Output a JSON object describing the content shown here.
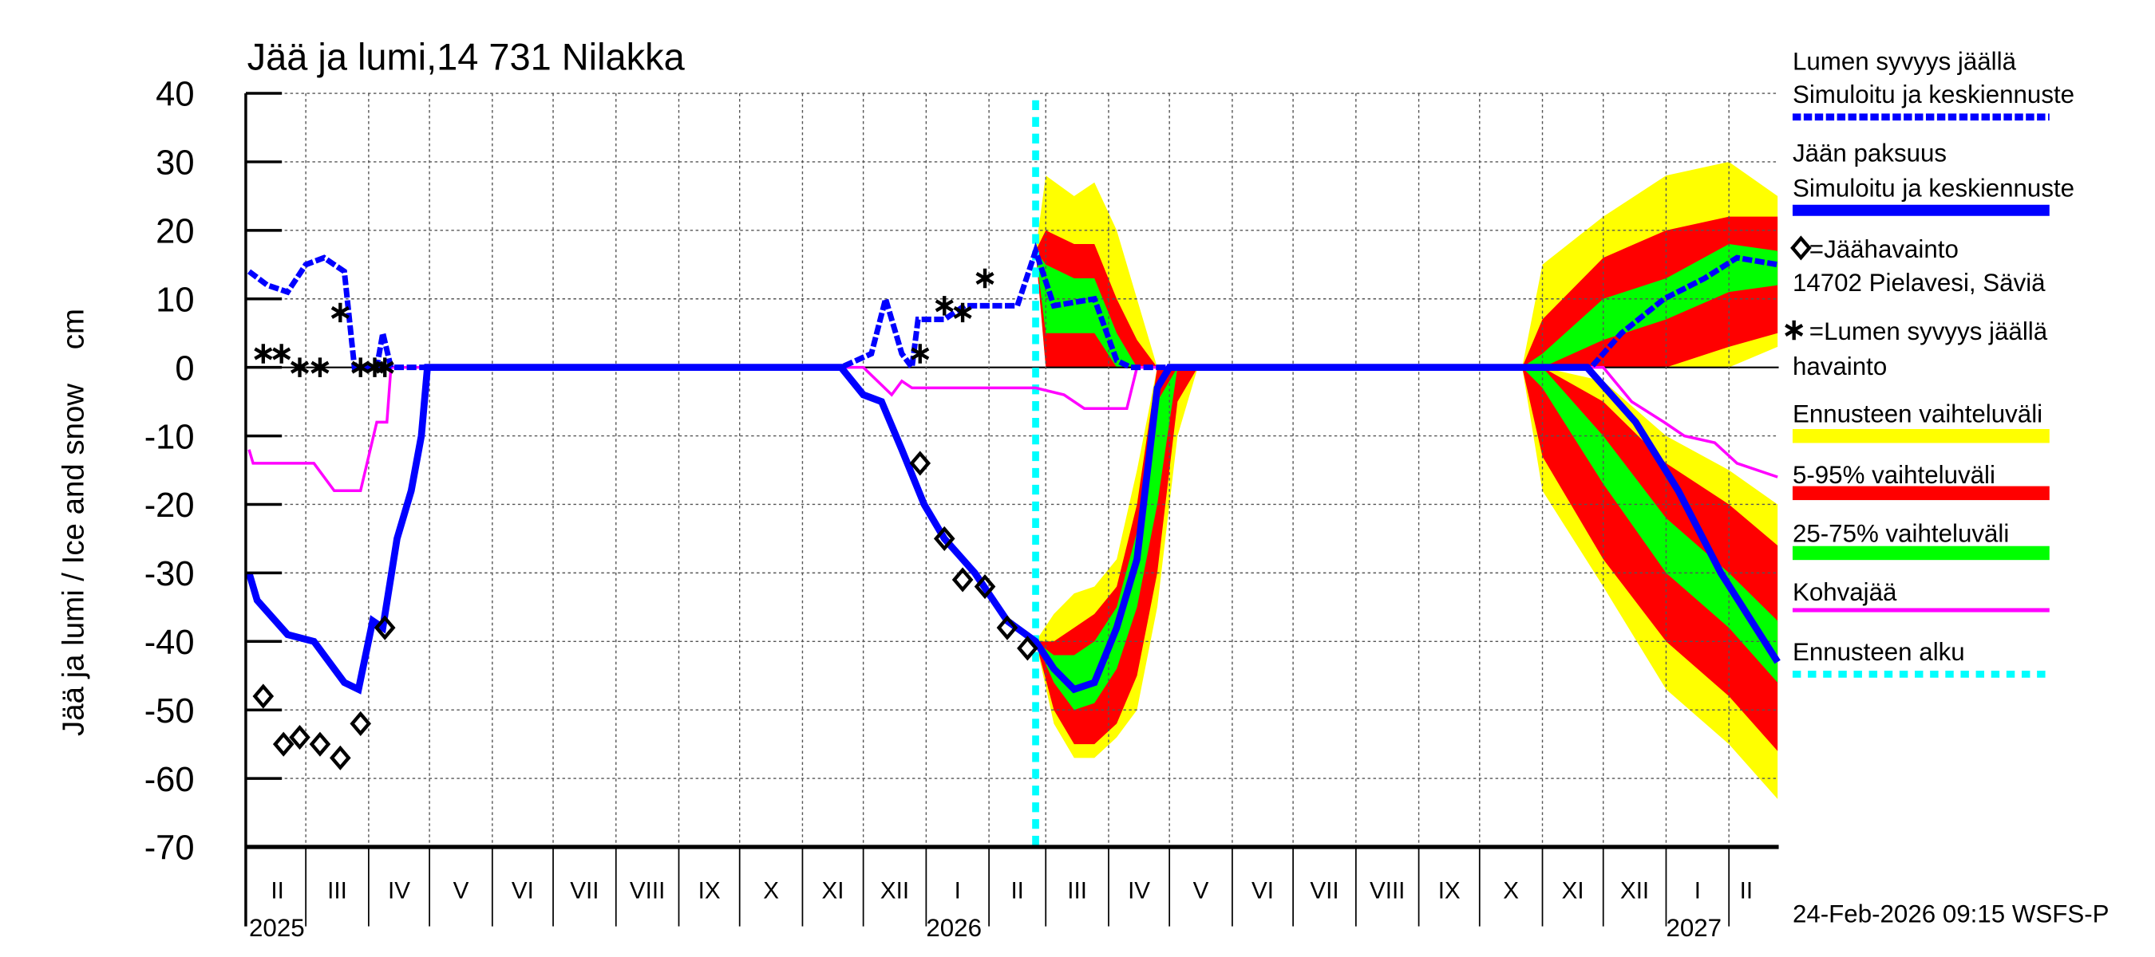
{
  "chart_data": {
    "type": "line",
    "title": "Jää ja lumi,14 731 Nilakka",
    "ylabel": "Jää ja lumi / Ice and snow    cm",
    "ylim": [
      -70,
      40
    ],
    "yticks": [
      40,
      30,
      20,
      10,
      0,
      -10,
      -20,
      -30,
      -40,
      -50,
      -60,
      -70
    ],
    "xlim": [
      "2025-02-01",
      "2027-02-25"
    ],
    "grid": true,
    "legend_position": "right",
    "month_labels": [
      "II",
      "III",
      "IV",
      "V",
      "VI",
      "VII",
      "VIII",
      "IX",
      "X",
      "XI",
      "XII",
      "I",
      "II",
      "III",
      "IV",
      "V",
      "VI",
      "VII",
      "VIII",
      "IX",
      "X",
      "XI",
      "XII",
      "I",
      "II"
    ],
    "year_labels": [
      {
        "label": "2025",
        "date": "2025-02-01"
      },
      {
        "label": "2026",
        "date": "2026-01-01"
      },
      {
        "label": "2027",
        "date": "2027-01-01"
      }
    ],
    "forecast_start": "2026-02-24",
    "colors": {
      "snow": "#0000ff",
      "ice": "#0000ff",
      "kohva": "#ff00ff",
      "range": "#ffff00",
      "p5_95": "#ff0000",
      "p25_75": "#00ff00",
      "forecast_start": "#00ffff"
    },
    "series": {
      "snow_simulated": [
        [
          "2025-02-01",
          14
        ],
        [
          "2025-02-10",
          12
        ],
        [
          "2025-02-20",
          11
        ],
        [
          "2025-03-01",
          15
        ],
        [
          "2025-03-10",
          16
        ],
        [
          "2025-03-20",
          14
        ],
        [
          "2025-03-25",
          0
        ],
        [
          "2025-04-05",
          0
        ],
        [
          "2025-04-08",
          5
        ],
        [
          "2025-04-12",
          0
        ],
        [
          "2025-11-20",
          0
        ],
        [
          "2025-12-05",
          2
        ],
        [
          "2025-12-12",
          10
        ],
        [
          "2025-12-20",
          2
        ],
        [
          "2025-12-25",
          0
        ],
        [
          "2025-12-28",
          7
        ],
        [
          "2026-01-10",
          7
        ],
        [
          "2026-01-20",
          9
        ],
        [
          "2026-02-15",
          9
        ],
        [
          "2026-02-24",
          17
        ],
        [
          "2026-03-05",
          9
        ],
        [
          "2026-03-25",
          10
        ],
        [
          "2026-04-05",
          1
        ],
        [
          "2026-04-12",
          0
        ],
        [
          "2026-11-25",
          0
        ],
        [
          "2026-12-10",
          5
        ],
        [
          "2026-12-31",
          10
        ],
        [
          "2027-01-20",
          13
        ],
        [
          "2027-02-05",
          16
        ],
        [
          "2027-02-25",
          15
        ]
      ],
      "ice_simulated": [
        [
          "2025-02-01",
          -30
        ],
        [
          "2025-02-05",
          -34
        ],
        [
          "2025-02-20",
          -39
        ],
        [
          "2025-03-05",
          -40
        ],
        [
          "2025-03-20",
          -46
        ],
        [
          "2025-03-27",
          -47
        ],
        [
          "2025-04-03",
          -37
        ],
        [
          "2025-04-08",
          -38
        ],
        [
          "2025-04-15",
          -25
        ],
        [
          "2025-04-22",
          -18
        ],
        [
          "2025-04-27",
          -10
        ],
        [
          "2025-04-30",
          0
        ],
        [
          "2025-11-20",
          0
        ],
        [
          "2025-12-01",
          -4
        ],
        [
          "2025-12-10",
          -5
        ],
        [
          "2025-12-20",
          -12
        ],
        [
          "2025-12-31",
          -20
        ],
        [
          "2026-01-10",
          -25
        ],
        [
          "2026-01-25",
          -30
        ],
        [
          "2026-02-10",
          -37
        ],
        [
          "2026-02-24",
          -40
        ],
        [
          "2026-03-05",
          -44
        ],
        [
          "2026-03-15",
          -47
        ],
        [
          "2026-03-25",
          -46
        ],
        [
          "2026-04-05",
          -38
        ],
        [
          "2026-04-15",
          -28
        ],
        [
          "2026-04-25",
          -3
        ],
        [
          "2026-05-01",
          0
        ],
        [
          "2026-11-23",
          0
        ],
        [
          "2026-12-17",
          -8
        ],
        [
          "2027-01-07",
          -18
        ],
        [
          "2027-01-28",
          -30
        ],
        [
          "2027-02-25",
          -43
        ]
      ],
      "kohvajaa": [
        [
          "2025-02-01",
          -12
        ],
        [
          "2025-02-03",
          -14
        ],
        [
          "2025-03-05",
          -14
        ],
        [
          "2025-03-15",
          -18
        ],
        [
          "2025-03-28",
          -18
        ],
        [
          "2025-04-05",
          -8
        ],
        [
          "2025-04-10",
          -8
        ],
        [
          "2025-04-12",
          0
        ],
        [
          "2025-12-01",
          0
        ],
        [
          "2025-12-15",
          -4
        ],
        [
          "2025-12-20",
          -2
        ],
        [
          "2025-12-25",
          -3
        ],
        [
          "2026-02-24",
          -3
        ],
        [
          "2026-03-10",
          -4
        ],
        [
          "2026-03-20",
          -6
        ],
        [
          "2026-04-10",
          -6
        ],
        [
          "2026-04-15",
          0
        ],
        [
          "2026-12-01",
          0
        ],
        [
          "2026-12-15",
          -5
        ],
        [
          "2026-12-31",
          -8
        ],
        [
          "2027-01-10",
          -10
        ],
        [
          "2027-01-25",
          -11
        ],
        [
          "2027-02-05",
          -14
        ],
        [
          "2027-02-25",
          -16
        ]
      ],
      "ice_observed": [
        [
          "2025-02-08",
          -48
        ],
        [
          "2025-02-18",
          -55
        ],
        [
          "2025-02-26",
          -54
        ],
        [
          "2025-03-08",
          -55
        ],
        [
          "2025-03-18",
          -57
        ],
        [
          "2025-03-28",
          -52
        ],
        [
          "2025-04-09",
          -38
        ],
        [
          "2025-12-29",
          -14
        ],
        [
          "2026-01-10",
          -25
        ],
        [
          "2026-01-19",
          -31
        ],
        [
          "2026-01-30",
          -32
        ],
        [
          "2026-02-10",
          -38
        ],
        [
          "2026-02-20",
          -41
        ]
      ],
      "snow_observed": [
        [
          "2025-02-08",
          2
        ],
        [
          "2025-02-17",
          2
        ],
        [
          "2025-02-26",
          0
        ],
        [
          "2025-03-08",
          0
        ],
        [
          "2025-03-18",
          8
        ],
        [
          "2025-03-28",
          0
        ],
        [
          "2025-04-04",
          0
        ],
        [
          "2025-04-09",
          0
        ],
        [
          "2025-12-29",
          2
        ],
        [
          "2026-01-10",
          9
        ],
        [
          "2026-01-19",
          8
        ],
        [
          "2026-01-30",
          13
        ]
      ]
    },
    "bands_columns": [
      "date",
      "max",
      "p95",
      "p75",
      "p25",
      "p5",
      "min"
    ],
    "bands": [
      [
        [
          "2026-02-24",
          -40,
          -40,
          -40,
          -40,
          -40,
          -40
        ],
        [
          "2026-03-05",
          -36,
          -40,
          -42,
          -46,
          -50,
          -52
        ],
        [
          "2026-03-15",
          -33,
          -38,
          -42,
          -50,
          -55,
          -57
        ],
        [
          "2026-03-25",
          -32,
          -36,
          -40,
          -49,
          -55,
          -57
        ],
        [
          "2026-04-05",
          -28,
          -32,
          -35,
          -44,
          -52,
          -54
        ],
        [
          "2026-04-15",
          -15,
          -20,
          -24,
          -35,
          -45,
          -50
        ],
        [
          "2026-04-25",
          0,
          0,
          -5,
          -20,
          -30,
          -35
        ],
        [
          "2026-05-05",
          0,
          0,
          0,
          0,
          -5,
          -10
        ],
        [
          "2026-05-15",
          0,
          0,
          0,
          0,
          0,
          0
        ]
      ],
      [
        [
          "2026-02-24",
          17,
          17,
          17,
          17,
          17,
          17
        ],
        [
          "2026-03-01",
          28,
          20,
          15,
          5,
          0,
          0
        ],
        [
          "2026-03-15",
          25,
          18,
          13,
          5,
          0,
          0
        ],
        [
          "2026-03-25",
          27,
          18,
          13,
          5,
          0,
          0
        ],
        [
          "2026-04-05",
          20,
          10,
          5,
          0,
          0,
          0
        ],
        [
          "2026-04-15",
          10,
          4,
          0,
          0,
          0,
          0
        ],
        [
          "2026-04-25",
          0,
          0,
          0,
          0,
          0,
          0
        ]
      ],
      [
        [
          "2026-10-22",
          0,
          0,
          0,
          0,
          0,
          0
        ],
        [
          "2026-11-01",
          0,
          0,
          0,
          -3,
          -13,
          -18
        ],
        [
          "2026-12-01",
          -2,
          -5,
          -10,
          -17,
          -28,
          -32
        ],
        [
          "2027-01-01",
          -10,
          -14,
          -22,
          -30,
          -40,
          -47
        ],
        [
          "2027-02-01",
          -15,
          -20,
          -30,
          -38,
          -48,
          -55
        ],
        [
          "2027-02-25",
          -20,
          -26,
          -37,
          -46,
          -56,
          -63
        ]
      ],
      [
        [
          "2026-10-22",
          0,
          0,
          0,
          0,
          0,
          0
        ],
        [
          "2026-11-01",
          15,
          7,
          2,
          0,
          0,
          0
        ],
        [
          "2026-12-01",
          22,
          16,
          10,
          4,
          0,
          0
        ],
        [
          "2027-01-01",
          28,
          20,
          13,
          7,
          0,
          0
        ],
        [
          "2027-02-01",
          30,
          22,
          18,
          11,
          3,
          0
        ],
        [
          "2027-02-25",
          25,
          22,
          17,
          12,
          5,
          3
        ]
      ]
    ],
    "legend": {
      "snow_title": "Lumen syvyys jäällä",
      "snow_sub": "Simuloitu ja keskiennuste",
      "ice_title": "Jään paksuus",
      "ice_sub": "Simuloitu ja keskiennuste",
      "ice_obs": "=Jäähavainto",
      "ice_obs_station": "14702 Pielavesi, Säviä",
      "snow_obs": "=Lumen syvyys jäällä",
      "snow_obs_sub": "havainto",
      "range": "Ennusteen vaihteluväli",
      "p5_95": "5-95% vaihteluväli",
      "p25_75": "25-75% vaihteluväli",
      "kohva": "Kohvajää",
      "forecast_start": "Ennusteen alku"
    },
    "footer": "24-Feb-2026 09:15 WSFS-P"
  }
}
